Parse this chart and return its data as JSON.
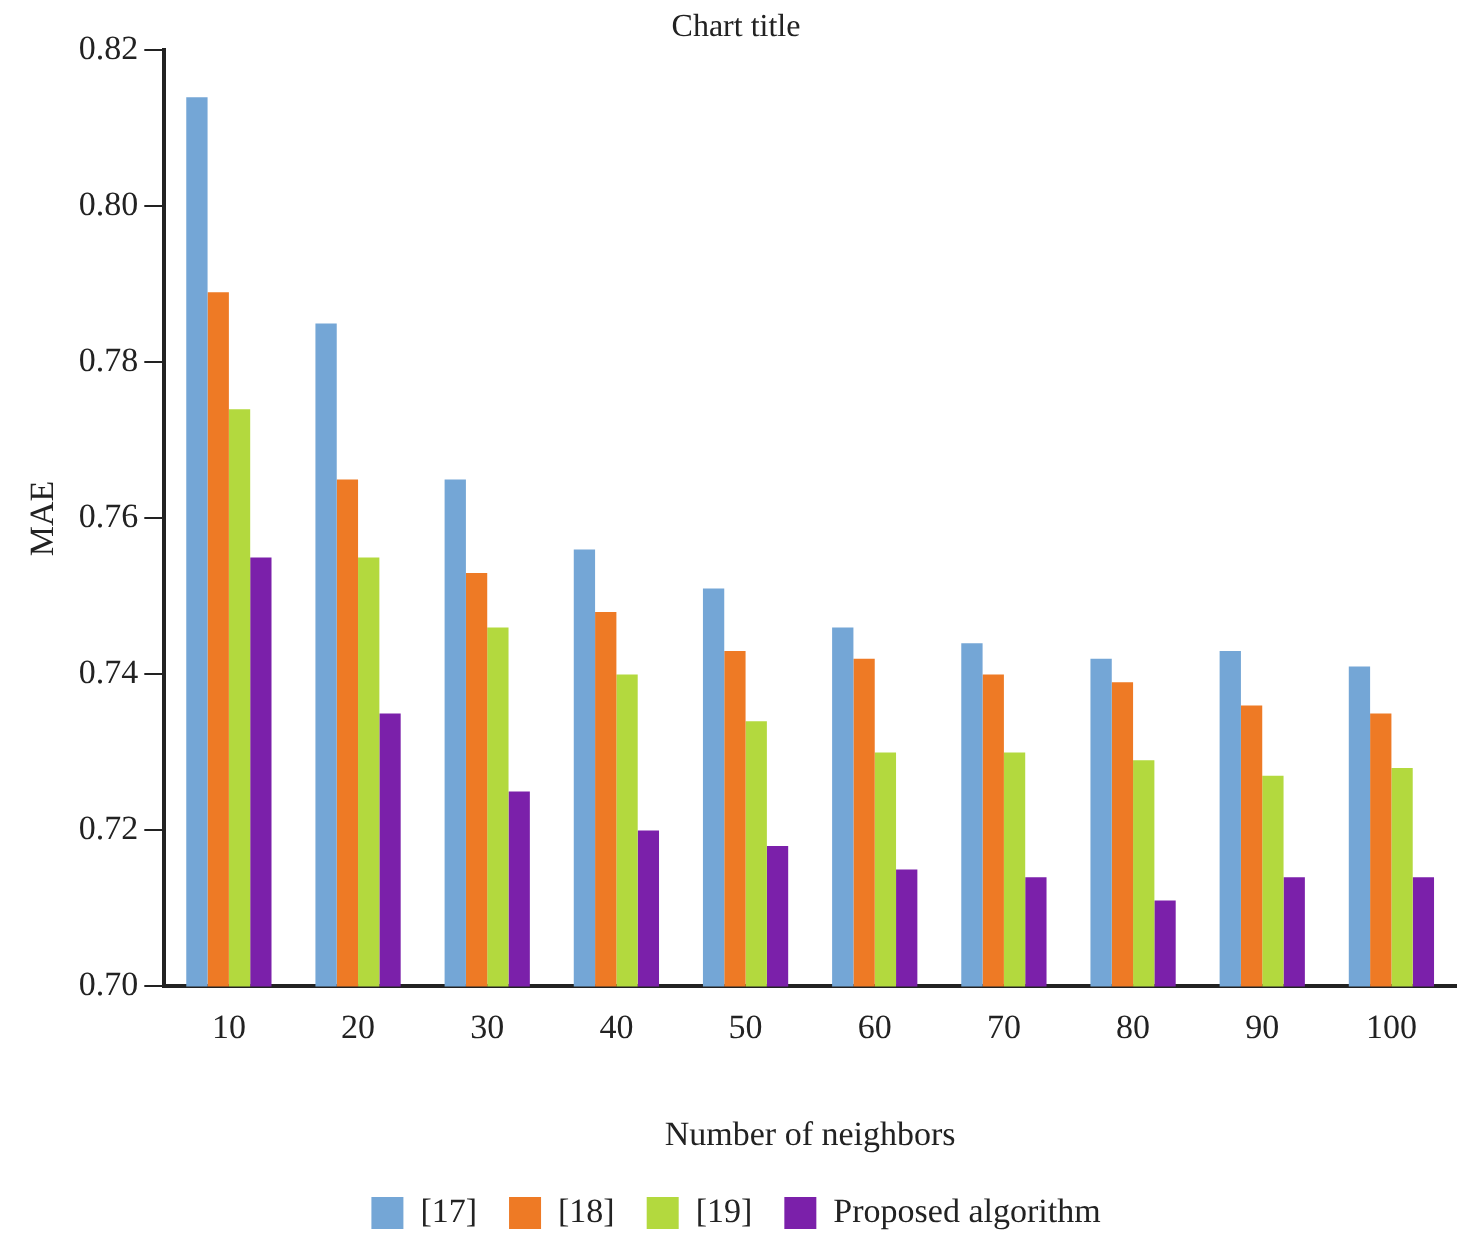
{
  "chart_data": {
    "type": "bar",
    "title": "Chart title",
    "xlabel": "Number of neighbors",
    "ylabel": "MAE",
    "categories": [
      "10",
      "20",
      "30",
      "40",
      "50",
      "60",
      "70",
      "80",
      "90",
      "100"
    ],
    "series": [
      {
        "name": "[17]",
        "color": "#74a6d6",
        "values": [
          0.814,
          0.785,
          0.765,
          0.756,
          0.751,
          0.746,
          0.744,
          0.742,
          0.743,
          0.741
        ]
      },
      {
        "name": "[18]",
        "color": "#ee7a25",
        "values": [
          0.789,
          0.765,
          0.753,
          0.748,
          0.743,
          0.742,
          0.74,
          0.739,
          0.736,
          0.735
        ]
      },
      {
        "name": "[19]",
        "color": "#b3d93e",
        "values": [
          0.774,
          0.755,
          0.746,
          0.74,
          0.734,
          0.73,
          0.73,
          0.729,
          0.727,
          0.728
        ]
      },
      {
        "name": "Proposed algorithm",
        "color": "#7b20aa",
        "values": [
          0.755,
          0.735,
          0.725,
          0.72,
          0.718,
          0.715,
          0.714,
          0.711,
          0.714,
          0.714
        ]
      }
    ],
    "ylim": [
      0.7,
      0.82
    ],
    "yticks": [
      {
        "value": 0.7,
        "label": "0.70"
      },
      0.72,
      0.74,
      0.76,
      0.78,
      {
        "value": 0.8,
        "label": "0.80"
      },
      0.82
    ],
    "grid": false,
    "legend": "bottom"
  }
}
